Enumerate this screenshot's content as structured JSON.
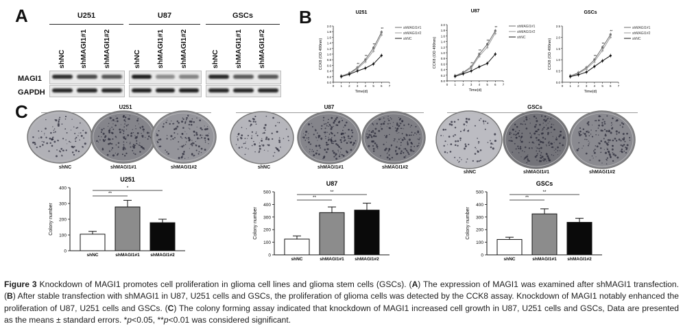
{
  "panel_letters": {
    "a": "A",
    "b": "B",
    "c": "C"
  },
  "western_blot": {
    "groups": [
      {
        "name": "U251",
        "lanes": [
          "shNC",
          "shMAGI1#1",
          "shMAGI1#2"
        ],
        "magi1": [
          0.92,
          0.78,
          0.72
        ],
        "gapdh": [
          0.95,
          0.95,
          0.95
        ]
      },
      {
        "name": "U87",
        "lanes": [
          "shNC",
          "shMAGI1#1",
          "shMAGI1#2"
        ],
        "magi1": [
          1.0,
          0.45,
          0.5
        ],
        "gapdh": [
          0.98,
          0.98,
          0.98
        ]
      },
      {
        "name": "GSCs",
        "lanes": [
          "shNC",
          "shMAGI1#1",
          "shMAGI1#2"
        ],
        "magi1": [
          0.95,
          0.7,
          0.72
        ],
        "gapdh": [
          0.95,
          0.95,
          0.95
        ]
      }
    ],
    "row_labels": [
      "MAGI1",
      "GAPDH"
    ]
  },
  "colony_plates": [
    {
      "title": "U251",
      "plates": [
        "shNC",
        "shMAGI1#1",
        "shMAGI1#2"
      ],
      "density": [
        0.35,
        0.75,
        0.6
      ]
    },
    {
      "title": "U87",
      "plates": [
        "shNC",
        "shMAGI1#1",
        "shMAGI1#2"
      ],
      "density": [
        0.3,
        0.75,
        0.8
      ]
    },
    {
      "title": "GSCs",
      "plates": [
        "shNC",
        "shMAGI1#1",
        "shMAGI1#2"
      ],
      "density": [
        0.25,
        0.9,
        0.7
      ]
    }
  ],
  "chart_data": [
    {
      "type": "line",
      "title": "U251",
      "xlabel": "Time(d)",
      "ylabel": "CCK8 (OD 490nm)",
      "xlim": [
        0,
        7
      ],
      "ylim": [
        0,
        2.0
      ],
      "x": [
        1,
        2,
        3,
        4,
        5,
        6
      ],
      "series": [
        {
          "name": "shMAGI1#1",
          "values": [
            0.22,
            0.32,
            0.52,
            0.8,
            1.22,
            1.78
          ]
        },
        {
          "name": "shMAGI1#2",
          "values": [
            0.21,
            0.3,
            0.48,
            0.74,
            1.12,
            1.7
          ]
        },
        {
          "name": "shNC",
          "values": [
            0.2,
            0.28,
            0.4,
            0.5,
            0.65,
            0.95
          ]
        }
      ],
      "annotations": [
        "**",
        "**",
        "**",
        "**"
      ]
    },
    {
      "type": "line",
      "title": "U87",
      "xlabel": "Time(d)",
      "ylabel": "CCK8 (OD 490nm)",
      "xlim": [
        0,
        7
      ],
      "ylim": [
        0,
        2.0
      ],
      "x": [
        1,
        2,
        3,
        4,
        5,
        6
      ],
      "series": [
        {
          "name": "shMAGI1#1",
          "values": [
            0.18,
            0.3,
            0.5,
            0.95,
            1.3,
            1.78
          ]
        },
        {
          "name": "shMAGI1#2",
          "values": [
            0.17,
            0.28,
            0.45,
            0.88,
            1.2,
            1.7
          ]
        },
        {
          "name": "shNC",
          "values": [
            0.16,
            0.25,
            0.35,
            0.5,
            0.62,
            0.95
          ]
        }
      ],
      "annotations": [
        "**",
        "**",
        "**",
        "**"
      ]
    },
    {
      "type": "line",
      "title": "GSCs",
      "xlabel": "Time(d)",
      "ylabel": "CCK8 (OD 490nm)",
      "xlim": [
        0,
        7
      ],
      "ylim": [
        0,
        2.5
      ],
      "x": [
        1,
        2,
        3,
        4,
        5,
        6
      ],
      "series": [
        {
          "name": "shMAGI1#1",
          "values": [
            0.28,
            0.42,
            0.65,
            1.0,
            1.55,
            2.12
          ]
        },
        {
          "name": "shMAGI1#2",
          "values": [
            0.26,
            0.38,
            0.6,
            0.92,
            1.42,
            2.02
          ]
        },
        {
          "name": "shNC",
          "values": [
            0.25,
            0.33,
            0.45,
            0.7,
            0.95,
            1.18
          ]
        }
      ],
      "annotations": [
        "**",
        "**",
        "**"
      ]
    },
    {
      "type": "bar",
      "title": "U251",
      "ylabel": "Colony number",
      "ylim": [
        0,
        400
      ],
      "yticks": [
        0,
        100,
        200,
        300,
        400
      ],
      "categories": [
        "shNC",
        "shMAGI1#1",
        "shMAGI1#2"
      ],
      "values": [
        105,
        278,
        178
      ],
      "errors": [
        18,
        42,
        22
      ],
      "colors": [
        "#ffffff",
        "#8c8c8c",
        "#0a0a0a"
      ],
      "significance": [
        {
          "from": 0,
          "to": 1,
          "label": "**"
        },
        {
          "from": 0,
          "to": 2,
          "label": "*"
        }
      ]
    },
    {
      "type": "bar",
      "title": "U87",
      "ylabel": "Colony number",
      "ylim": [
        0,
        500
      ],
      "yticks": [
        0,
        100,
        200,
        300,
        400,
        500
      ],
      "categories": [
        "shNC",
        "shMAGI1#1",
        "shMAGI1#2"
      ],
      "values": [
        125,
        335,
        355
      ],
      "errors": [
        25,
        45,
        55
      ],
      "colors": [
        "#ffffff",
        "#8c8c8c",
        "#0a0a0a"
      ],
      "significance": [
        {
          "from": 0,
          "to": 1,
          "label": "**"
        },
        {
          "from": 0,
          "to": 2,
          "label": "**"
        }
      ]
    },
    {
      "type": "bar",
      "title": "GSCs",
      "ylabel": "Colony number",
      "ylim": [
        0,
        500
      ],
      "yticks": [
        0,
        100,
        200,
        300,
        400,
        500
      ],
      "categories": [
        "shNC",
        "shMAGI1#1",
        "shMAGI1#2"
      ],
      "values": [
        122,
        325,
        258
      ],
      "errors": [
        18,
        40,
        32
      ],
      "colors": [
        "#ffffff",
        "#8c8c8c",
        "#0a0a0a"
      ],
      "significance": [
        {
          "from": 0,
          "to": 1,
          "label": "**"
        },
        {
          "from": 0,
          "to": 2,
          "label": "**"
        }
      ]
    }
  ],
  "caption": {
    "fig": "Figure 3",
    "p1": " Knockdown of MAGI1 promotes cell proliferation in glioma cell lines and glioma stem cells (GSCs). (",
    "a": "A",
    "p2": ") The expression of MAGI1 was examined after shMAGI1 transfection. (",
    "b": "B",
    "p3": ") After stable transfection with shMAGI1 in U87, U251 cells and GSCs, the proliferation of glioma cells was detected by the CCK8 assay. Knockdown of MAGI1 notably enhanced the proliferation of U87, U251 cells and GSCs. (",
    "c": "C",
    "p4": ") The colony forming assay indicated that knockdown of MAGI1 increased cell growth in U87, U251 cells and GSCs, Data are presented as the means ± standard errors. *",
    "pvar1": "p",
    "p5": "<0.05, **",
    "pvar2": "p",
    "p6": "<0.01 was considered significant."
  }
}
